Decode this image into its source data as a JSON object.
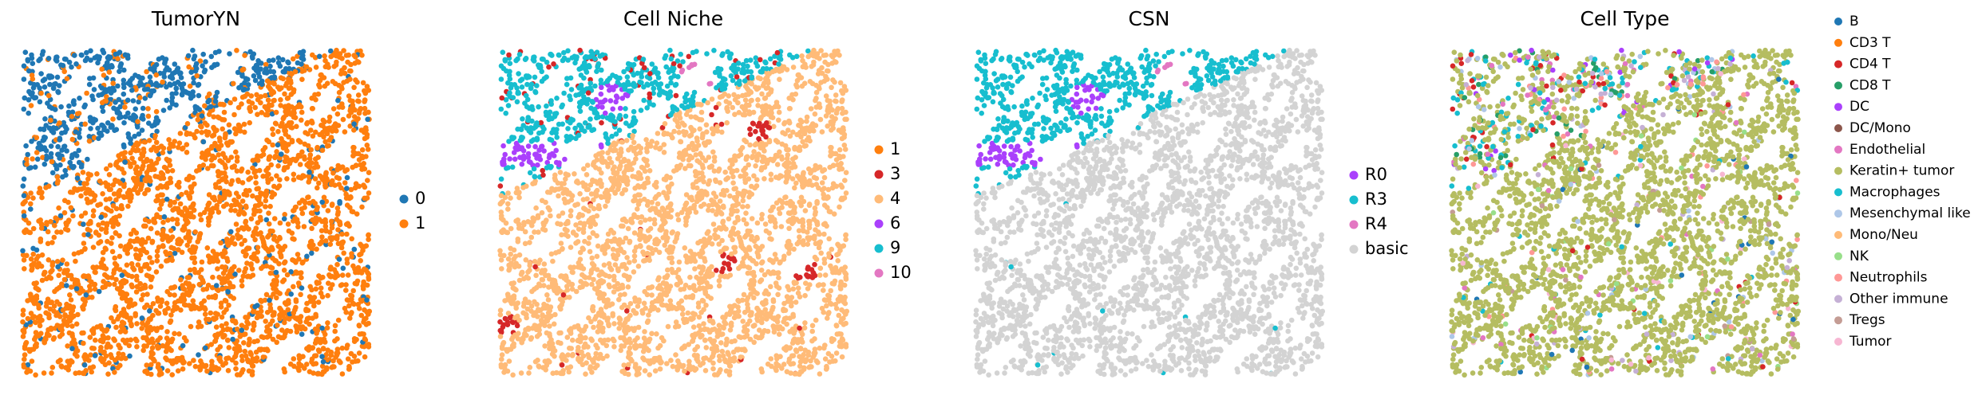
{
  "chart_data": [
    {
      "type": "scatter",
      "title": "TumorYN",
      "series": [
        {
          "name": "0",
          "color": "#1f77b4"
        },
        {
          "name": "1",
          "color": "#ff7f0e"
        }
      ]
    },
    {
      "type": "scatter",
      "title": "Cell Niche",
      "series": [
        {
          "name": "1",
          "color": "#ff7f0e"
        },
        {
          "name": "3",
          "color": "#d62728"
        },
        {
          "name": "4",
          "color": "#ffbb78"
        },
        {
          "name": "6",
          "color": "#aa40fc"
        },
        {
          "name": "9",
          "color": "#17becf"
        },
        {
          "name": "10",
          "color": "#e377c2"
        }
      ]
    },
    {
      "type": "scatter",
      "title": "CSN",
      "series": [
        {
          "name": "R0",
          "color": "#aa40fc"
        },
        {
          "name": "R3",
          "color": "#17becf"
        },
        {
          "name": "R4",
          "color": "#e377c2"
        },
        {
          "name": "basic",
          "color": "#d3d3d3"
        }
      ]
    },
    {
      "type": "scatter",
      "title": "Cell Type",
      "series": [
        {
          "name": "B",
          "color": "#1f77b4"
        },
        {
          "name": "CD3 T",
          "color": "#ff7f0e"
        },
        {
          "name": "CD4 T",
          "color": "#d62728"
        },
        {
          "name": "CD8 T",
          "color": "#279e68"
        },
        {
          "name": "DC",
          "color": "#aa40fc"
        },
        {
          "name": "DC/Mono",
          "color": "#8c564b"
        },
        {
          "name": "Endothelial",
          "color": "#e377c2"
        },
        {
          "name": "Keratin+ tumor",
          "color": "#b5bd61"
        },
        {
          "name": "Macrophages",
          "color": "#17becf"
        },
        {
          "name": "Mesenchymal like",
          "color": "#aec7e8"
        },
        {
          "name": "Mono/Neu",
          "color": "#ffbb78"
        },
        {
          "name": "NK",
          "color": "#98df8a"
        },
        {
          "name": "Neutrophils",
          "color": "#ff9896"
        },
        {
          "name": "Other immune",
          "color": "#c5b0d5"
        },
        {
          "name": "Tregs",
          "color": "#c49c94"
        },
        {
          "name": "Tumor",
          "color": "#f7b6d2"
        }
      ]
    }
  ]
}
